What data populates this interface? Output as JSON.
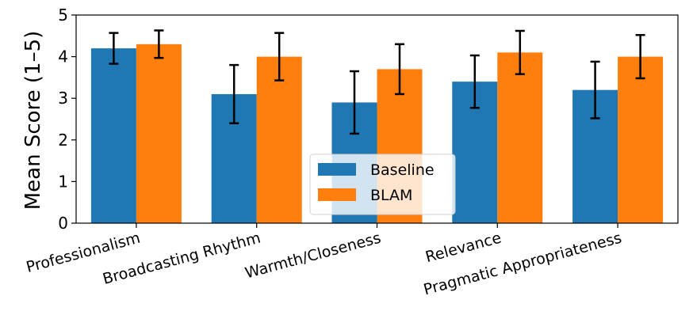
{
  "chart_data": {
    "type": "bar",
    "title": "",
    "xlabel": "",
    "ylabel": "Mean Score (1–5)",
    "ylim": [
      0,
      5
    ],
    "yticks": [
      0,
      1,
      2,
      3,
      4,
      5
    ],
    "categories": [
      "Professionalism",
      "Broadcasting Rhythm",
      "Warmth/Closeness",
      "Relevance",
      "Pragmatic Appropriateness"
    ],
    "series": [
      {
        "name": "Baseline",
        "color": "#1f77b4",
        "values": [
          4.2,
          3.1,
          2.9,
          3.4,
          3.2
        ],
        "errors": [
          0.37,
          0.7,
          0.75,
          0.63,
          0.68
        ]
      },
      {
        "name": "BLAM",
        "color": "#ff7f0e",
        "values": [
          4.3,
          4.0,
          3.7,
          4.1,
          4.0
        ],
        "errors": [
          0.33,
          0.57,
          0.6,
          0.52,
          0.52
        ]
      }
    ],
    "legend": "lower-center",
    "grid": false
  }
}
